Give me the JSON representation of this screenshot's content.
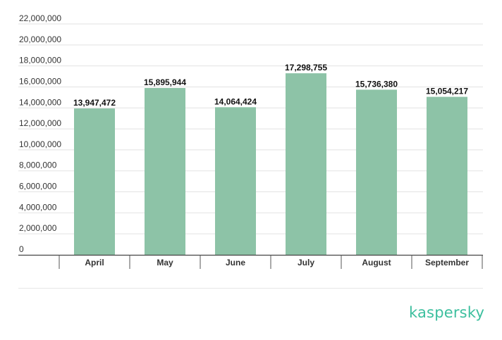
{
  "chart_data": {
    "type": "bar",
    "categories": [
      "April",
      "May",
      "June",
      "July",
      "August",
      "September"
    ],
    "values": [
      13947472,
      15895944,
      14064424,
      17298755,
      15736380,
      15054217
    ],
    "value_labels": [
      "13,947,472",
      "15,895,944",
      "14,064,424",
      "17,298,755",
      "15,736,380",
      "15,054,217"
    ],
    "yticks": [
      "0",
      "2,000,000",
      "4,000,000",
      "6,000,000",
      "8,000,000",
      "10,000,000",
      "12,000,000",
      "14,000,000",
      "16,000,000",
      "18,000,000",
      "20,000,000",
      "22,000,000"
    ],
    "ylim": [
      0,
      22000000
    ],
    "grid": true,
    "bar_color": "#8dc3a7",
    "title": "",
    "xlabel": "",
    "ylabel": ""
  },
  "brand": {
    "logo_text": "kaspersky",
    "logo_color": "#3cbf9e"
  }
}
